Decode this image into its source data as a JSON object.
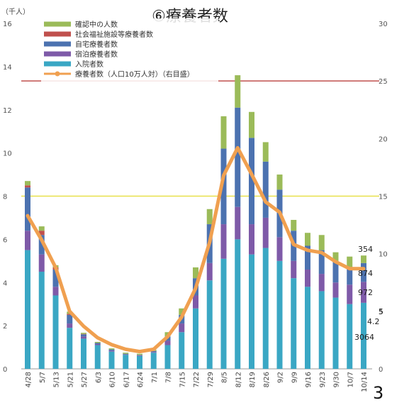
{
  "chart_data": {
    "type": "bar",
    "title": "⑥療養者数",
    "unit_label": "（千人）",
    "page_number": "3",
    "categories": [
      "4/28",
      "5/7",
      "5/13",
      "5/21",
      "5/27",
      "6/3",
      "6/10",
      "6/17",
      "6/24",
      "7/1",
      "7/8",
      "7/15",
      "7/22",
      "7/29",
      "8/5",
      "8/12",
      "8/19",
      "8/26",
      "9/2",
      "9/9",
      "9/16",
      "9/23",
      "9/30",
      "10/7",
      "10/14"
    ],
    "stacked": true,
    "series": [
      {
        "name": "入院者数",
        "color": "#3aa7c4",
        "values": [
          5.5,
          4.5,
          3.4,
          1.9,
          1.4,
          1.1,
          0.8,
          0.65,
          0.6,
          0.75,
          1.1,
          1.7,
          2.8,
          4.1,
          5.1,
          6.0,
          5.3,
          5.6,
          5.0,
          4.2,
          3.8,
          3.6,
          3.3,
          3.0,
          3.06
        ]
      },
      {
        "name": "宿泊療養者数",
        "color": "#7e5aa8",
        "values": [
          0.9,
          0.8,
          0.4,
          0.2,
          0.1,
          0.05,
          0.05,
          0.02,
          0.03,
          0.03,
          0.2,
          0.4,
          0.6,
          0.8,
          1.6,
          1.5,
          1.4,
          1.4,
          1.1,
          0.8,
          0.8,
          0.8,
          0.7,
          0.9,
          0.97
        ]
      },
      {
        "name": "自宅療養者数",
        "color": "#4c72b0",
        "values": [
          2.0,
          0.9,
          0.8,
          0.4,
          0.1,
          0.05,
          0.05,
          0.03,
          0.02,
          0.05,
          0.2,
          0.4,
          0.8,
          1.8,
          3.5,
          4.6,
          4.0,
          2.6,
          2.2,
          1.4,
          1.1,
          1.1,
          1.0,
          0.8,
          0.87
        ]
      },
      {
        "name": "社会福祉施設等療養者数",
        "color": "#c0504d",
        "values": [
          0.1,
          0.2,
          0.1,
          0.05,
          0.02,
          0.0,
          0.0,
          0.0,
          0.0,
          0.0,
          0.0,
          0.0,
          0.0,
          0.0,
          0.0,
          0.0,
          0.0,
          0.0,
          0.0,
          0.0,
          0.0,
          0.0,
          0.0,
          0.0,
          0.0
        ]
      },
      {
        "name": "確認中の人数",
        "color": "#9bbb59",
        "values": [
          0.2,
          0.2,
          0.1,
          0.1,
          0.05,
          0.05,
          0.05,
          0.05,
          0.05,
          0.05,
          0.2,
          0.3,
          0.5,
          0.7,
          1.5,
          1.5,
          1.2,
          0.9,
          0.7,
          0.5,
          0.6,
          0.7,
          0.4,
          0.5,
          0.35
        ]
      }
    ],
    "line": {
      "name": "療養者数（人口10万人対）（右目盛）",
      "color": "#f0a050",
      "values": [
        13.3,
        11.2,
        8.8,
        5.0,
        3.7,
        2.7,
        2.1,
        1.7,
        1.5,
        1.7,
        2.8,
        4.5,
        7.0,
        11.0,
        16.8,
        19.2,
        16.9,
        14.5,
        13.6,
        10.8,
        10.3,
        10.1,
        9.3,
        8.7,
        8.7
      ]
    },
    "ref_lines": [
      {
        "name": "red",
        "color": "#c0504d",
        "right_value": 25
      },
      {
        "name": "yellow",
        "color": "#e8e04a",
        "right_value": 15
      }
    ],
    "ylim": [
      0,
      16
    ],
    "y_ticks": [
      "0",
      "2",
      "4",
      "6",
      "8",
      "10",
      "12",
      "14",
      "16"
    ],
    "y2lim": [
      0,
      30
    ],
    "y2_ticks": [
      "0",
      "5",
      "10",
      "15",
      "20",
      "25",
      "30"
    ],
    "annotations": [
      "354",
      "874",
      "972",
      "5",
      "4.2",
      "3064"
    ],
    "legend": [
      {
        "label": "確認中の人数",
        "color": "#9bbb59",
        "kind": "bar"
      },
      {
        "label": "社会福祉施設等療養者数",
        "color": "#c0504d",
        "kind": "bar"
      },
      {
        "label": "自宅療養者数",
        "color": "#4c72b0",
        "kind": "bar"
      },
      {
        "label": "宿泊療養者数",
        "color": "#7e5aa8",
        "kind": "bar"
      },
      {
        "label": "入院者数",
        "color": "#3aa7c4",
        "kind": "bar"
      },
      {
        "label": "療養者数（人口10万人対）（右目盛）",
        "color": "#f0a050",
        "kind": "line"
      }
    ],
    "legend_position": "top-left",
    "grid": false
  }
}
